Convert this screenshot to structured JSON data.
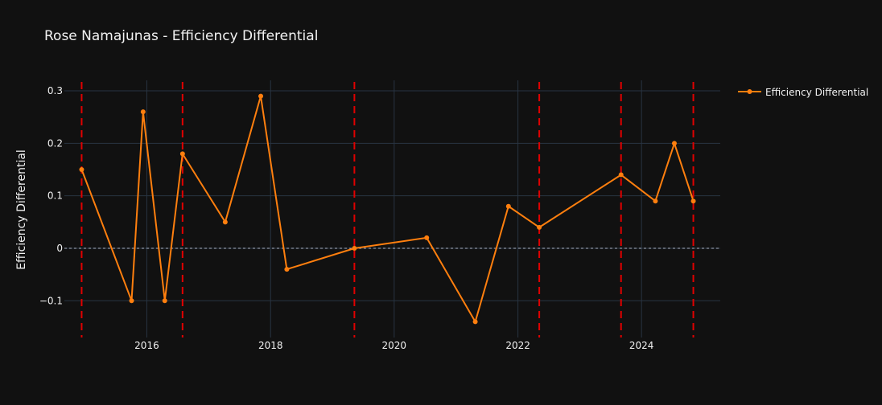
{
  "chart_data": {
    "type": "line",
    "title": "Rose Namajunas - Efficiency Differential",
    "xlabel": "",
    "ylabel": "Efficiency Differential",
    "x_axis_type": "date",
    "xlim": [
      "2014-09-01",
      "2025-04-10"
    ],
    "ylim": [
      -0.17,
      0.32
    ],
    "x_tick_labels": [
      "2016",
      "2018",
      "2020",
      "2022",
      "2024"
    ],
    "y_tick_values": [
      -0.1,
      0,
      0.1,
      0.2,
      0.3
    ],
    "y_tick_labels": [
      "−0.1",
      "0",
      "0.1",
      "0.2",
      "0.3"
    ],
    "grid": true,
    "legend_position": "top-right",
    "series": [
      {
        "name": "Efficiency Differential",
        "color": "#ff7f0e",
        "x": [
          "2014-12-12",
          "2015-10-03",
          "2015-12-10",
          "2016-04-16",
          "2016-07-30",
          "2017-04-08",
          "2017-11-04",
          "2018-04-07",
          "2019-05-11",
          "2020-07-11",
          "2021-04-24",
          "2021-11-06",
          "2022-05-07",
          "2023-09-02",
          "2024-03-23",
          "2024-07-13",
          "2024-11-02"
        ],
        "y": [
          0.15,
          -0.1,
          0.26,
          -0.1,
          0.18,
          0.05,
          0.29,
          -0.04,
          0.0,
          0.02,
          -0.14,
          0.08,
          0.04,
          0.14,
          0.09,
          0.2,
          0.09
        ]
      }
    ],
    "reference_lines": {
      "horizontal_zero": {
        "y": 0,
        "color": "#aab4c8",
        "style": "dashed"
      },
      "vertical_markers": {
        "color": "#e00000",
        "style": "dashed",
        "x": [
          "2014-12-12",
          "2016-07-30",
          "2019-05-11",
          "2022-05-07",
          "2023-09-02",
          "2024-11-02"
        ]
      }
    }
  }
}
